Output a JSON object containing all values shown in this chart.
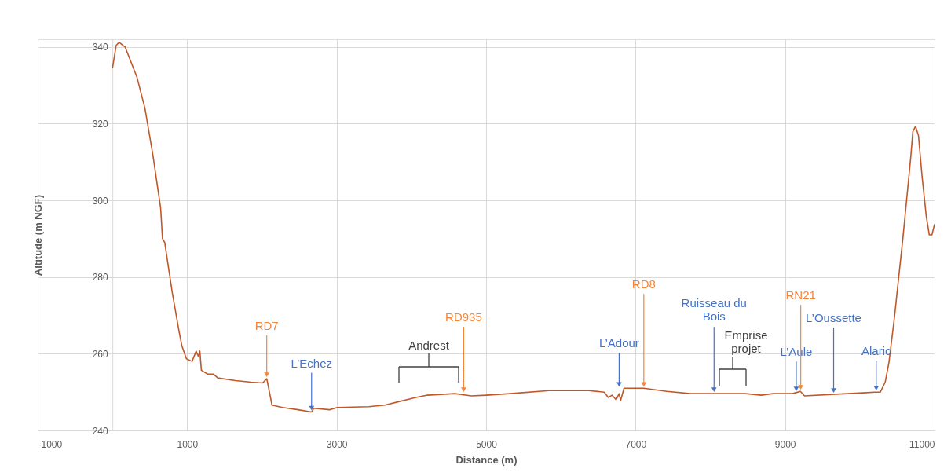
{
  "chart_data": {
    "type": "line",
    "xlabel": "Distance (m)",
    "ylabel": "Altitude (m NGF)",
    "xlim": [
      -1000,
      11000
    ],
    "xticks": [
      -1000,
      1000,
      3000,
      5000,
      7000,
      9000,
      11000
    ],
    "ylim": [
      240,
      342
    ],
    "yticks": [
      240,
      260,
      280,
      300,
      320,
      340
    ],
    "grid": true,
    "legend": false,
    "marker": "none",
    "line_style": "solid",
    "series": [
      {
        "color": "#c0582a",
        "x": [
          0,
          50,
          90,
          170,
          330,
          435,
          540,
          645,
          670,
          700,
          800,
          890,
          930,
          990,
          1065,
          1120,
          1150,
          1170,
          1190,
          1275,
          1350,
          1410,
          1645,
          1855,
          2010,
          2065,
          2105,
          2135,
          2275,
          2485,
          2665,
          2695,
          2905,
          3010,
          3430,
          3645,
          3850,
          4060,
          4215,
          4585,
          4800,
          5005,
          5320,
          5845,
          6370,
          6580,
          6635,
          6685,
          6740,
          6780,
          6800,
          6845,
          7110,
          7420,
          7735,
          8050,
          8470,
          8680,
          8840,
          9100,
          9205,
          9260,
          9630,
          10045,
          10200,
          10275,
          10340,
          10390,
          10465,
          10520,
          10575,
          10625,
          10680,
          10710,
          10745,
          10785,
          10835,
          10890,
          10930,
          10965,
          11000
        ],
        "values": [
          334.4,
          340.4,
          341.2,
          340,
          332,
          324,
          312,
          298,
          290,
          289,
          276,
          266,
          262,
          258.7,
          258,
          260.7,
          259.3,
          260.7,
          255.7,
          254.7,
          254.7,
          253.7,
          253,
          252.6,
          252.4,
          253.5,
          249.6,
          246.6,
          246,
          245.4,
          244.8,
          245.8,
          245.4,
          246,
          246.2,
          246.6,
          247.6,
          248.6,
          249.2,
          249.6,
          249,
          249.2,
          249.6,
          250.4,
          250.4,
          250,
          248.6,
          249.2,
          248,
          249.6,
          247.8,
          251,
          251,
          250.2,
          249.6,
          249.6,
          249.6,
          249.2,
          249.6,
          249.6,
          250.2,
          249,
          249.4,
          249.8,
          250,
          250,
          252.6,
          257.7,
          269.7,
          279.8,
          289.8,
          299.8,
          310.9,
          317.9,
          319.3,
          316.9,
          305.9,
          295.8,
          291,
          291,
          293.8
        ]
      }
    ],
    "annotations": [
      {
        "text": "RD7",
        "x": 2065,
        "y": 253.5
      },
      {
        "text": "L’Echez",
        "x": 2665,
        "y": 244.8
      },
      "Andrest",
      {
        "text": "RD935",
        "x": 4700,
        "y": 249.6
      },
      {
        "text": "L’Adour",
        "x": 6780,
        "y": 251
      },
      {
        "text": "RD8",
        "x": 7110,
        "y": 251
      },
      {
        "text": "Ruisseau du\nBois",
        "x": 8050,
        "y": 249.6
      },
      "Emprise\nprojet",
      {
        "text": "L’Aule",
        "x": 9150,
        "y": 249.8
      },
      {
        "text": "RN21",
        "x": 9210,
        "y": 250.2
      },
      {
        "text": "L’Oussette",
        "x": 9650,
        "y": 249.4
      },
      {
        "text": "Alaric",
        "x": 10220,
        "y": 250
      }
    ]
  }
}
